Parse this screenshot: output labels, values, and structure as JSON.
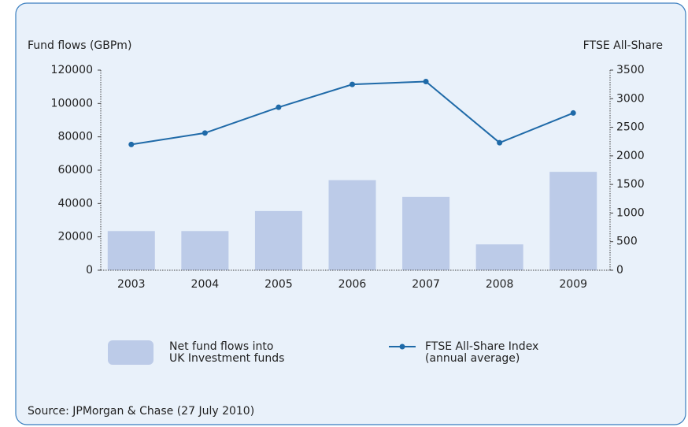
{
  "chart_data": {
    "type": "bar_line",
    "ylabel": "Fund flows (GBPm)",
    "y2label": "FTSE All-Share",
    "source": "Source: JPMorgan & Chase (27 July 2010)",
    "categories": [
      "2003",
      "2004",
      "2005",
      "2006",
      "2007",
      "2008",
      "2009"
    ],
    "series": [
      {
        "name": "Net fund flows into\nUK Investment funds",
        "type": "bar",
        "color": "#bccbe8",
        "values": [
          23500,
          23500,
          35500,
          54000,
          44000,
          15500,
          59000
        ]
      },
      {
        "name": "FTSE All-Share Index\n(annual average)",
        "type": "line",
        "axis": "y2",
        "color": "#1f6aa8",
        "values": [
          2200,
          2400,
          2850,
          3250,
          3300,
          2230,
          2750
        ]
      }
    ],
    "ylim": [
      0,
      120000
    ],
    "yticks": [
      0,
      20000,
      40000,
      60000,
      80000,
      100000,
      120000
    ],
    "y2lim": [
      0,
      3500
    ],
    "y2ticks": [
      0,
      500,
      1000,
      1500,
      2000,
      2500,
      3000,
      3500
    ]
  }
}
